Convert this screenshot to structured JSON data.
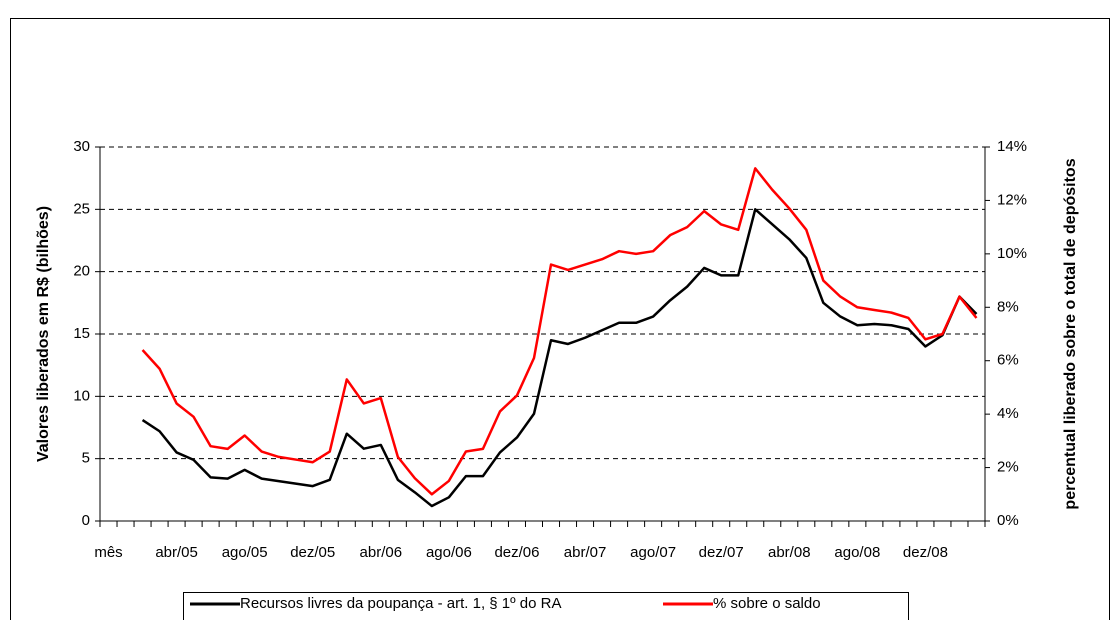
{
  "chart_data": {
    "type": "line",
    "y_label": "Valores liberados em R$ (bilhões)",
    "y2_label": "percentual liberado sobre o total de depósitos",
    "categories": [
      "mês",
      null,
      null,
      null,
      "abr/05",
      null,
      null,
      null,
      "ago/05",
      null,
      null,
      null,
      "dez/05",
      null,
      null,
      null,
      "abr/06",
      null,
      null,
      null,
      "ago/06",
      null,
      null,
      null,
      "dez/06",
      null,
      null,
      null,
      "abr/07",
      null,
      null,
      null,
      "ago/07",
      null,
      null,
      null,
      "dez/07",
      null,
      null,
      null,
      "abr/08",
      null,
      null,
      null,
      "ago/08",
      null,
      null,
      null,
      "dez/08",
      null,
      null,
      null
    ],
    "series": [
      {
        "name": "Recursos livres da poupança - art. 1, § 1º do RA",
        "color": "#000000",
        "values": [
          null,
          null,
          8.1,
          7.2,
          5.5,
          4.9,
          3.5,
          3.4,
          4.1,
          3.4,
          3.2,
          3.0,
          2.8,
          3.3,
          7.0,
          5.8,
          6.1,
          3.3,
          2.3,
          1.2,
          1.9,
          3.6,
          3.6,
          5.5,
          6.7,
          8.6,
          14.5,
          14.2,
          14.7,
          15.3,
          15.9,
          15.9,
          16.4,
          17.7,
          18.8,
          20.3,
          19.7,
          19.7,
          25.0,
          23.8,
          22.6,
          21.1,
          17.5,
          16.4,
          15.7,
          15.8,
          15.7,
          15.4,
          14.0,
          14.9,
          18.0,
          16.6
        ]
      },
      {
        "name": "% sobre o saldo",
        "color": "#ff0000",
        "axis": "y2",
        "values": [
          null,
          null,
          6.4,
          5.7,
          4.4,
          3.9,
          2.8,
          2.7,
          3.2,
          2.6,
          2.4,
          2.3,
          2.2,
          2.6,
          5.3,
          4.4,
          4.6,
          2.4,
          1.6,
          1.0,
          1.5,
          2.6,
          2.7,
          4.1,
          4.7,
          6.1,
          9.6,
          9.4,
          9.6,
          9.8,
          10.1,
          10.0,
          10.1,
          10.7,
          11.0,
          11.6,
          11.1,
          10.9,
          13.2,
          12.4,
          11.7,
          10.9,
          9.0,
          8.4,
          8.0,
          7.9,
          7.8,
          7.6,
          6.8,
          7.0,
          8.4,
          7.6
        ]
      }
    ],
    "ylim": [
      0,
      30
    ],
    "yticks": [
      0,
      5,
      10,
      15,
      20,
      25,
      30
    ],
    "y2lim": [
      0,
      14
    ],
    "y2ticks": [
      {
        "value": 0,
        "label": "0%"
      },
      {
        "value": 2,
        "label": "2%"
      },
      {
        "value": 4,
        "label": "4%"
      },
      {
        "value": 6,
        "label": "6%"
      },
      {
        "value": 8,
        "label": "8%"
      },
      {
        "value": 10,
        "label": "10%"
      },
      {
        "value": 12,
        "label": "12%"
      },
      {
        "value": 14,
        "label": "14%"
      }
    ],
    "grid": true,
    "legend": "bottom"
  }
}
